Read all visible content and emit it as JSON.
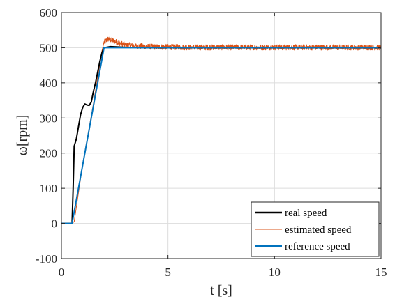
{
  "chart_data": {
    "type": "line",
    "xlabel": "t [s]",
    "ylabel": "ω[rpm]",
    "xlim": [
      0,
      15
    ],
    "ylim": [
      -100,
      600
    ],
    "xticks": [
      0,
      5,
      10,
      15
    ],
    "yticks": [
      -100,
      0,
      100,
      200,
      300,
      400,
      500,
      600
    ],
    "grid": true,
    "legend_position": "bottom-right",
    "series": [
      {
        "name": "real speed",
        "color": "#000000",
        "x": [
          0,
          0.5,
          0.55,
          0.6,
          0.7,
          0.8,
          0.9,
          1.0,
          1.1,
          1.2,
          1.3,
          1.4,
          1.5,
          1.6,
          1.7,
          1.8,
          1.9,
          2.0,
          2.3,
          3,
          4,
          6,
          8,
          10,
          12,
          14,
          15
        ],
        "y": [
          0,
          0,
          100,
          220,
          240,
          275,
          310,
          330,
          340,
          337,
          336,
          345,
          375,
          400,
          430,
          460,
          485,
          500,
          503,
          501,
          500,
          500,
          500,
          500,
          500,
          500,
          500
        ]
      },
      {
        "name": "estimated speed",
        "color": "#D95319",
        "x": [
          0,
          0.5,
          0.6,
          1.0,
          1.5,
          1.9,
          2.0,
          2.2,
          2.5,
          3,
          4,
          6,
          8,
          10,
          12,
          14,
          15
        ],
        "y": [
          0,
          0,
          5,
          170,
          340,
          490,
          515,
          525,
          518,
          508,
          503,
          501,
          501,
          501,
          501,
          501,
          501
        ],
        "noise_amplitude_after_2s": 8
      },
      {
        "name": "reference speed",
        "color": "#0072BD",
        "x": [
          0,
          0.5,
          2.0,
          15
        ],
        "y": [
          0,
          0,
          500,
          500
        ]
      }
    ]
  }
}
